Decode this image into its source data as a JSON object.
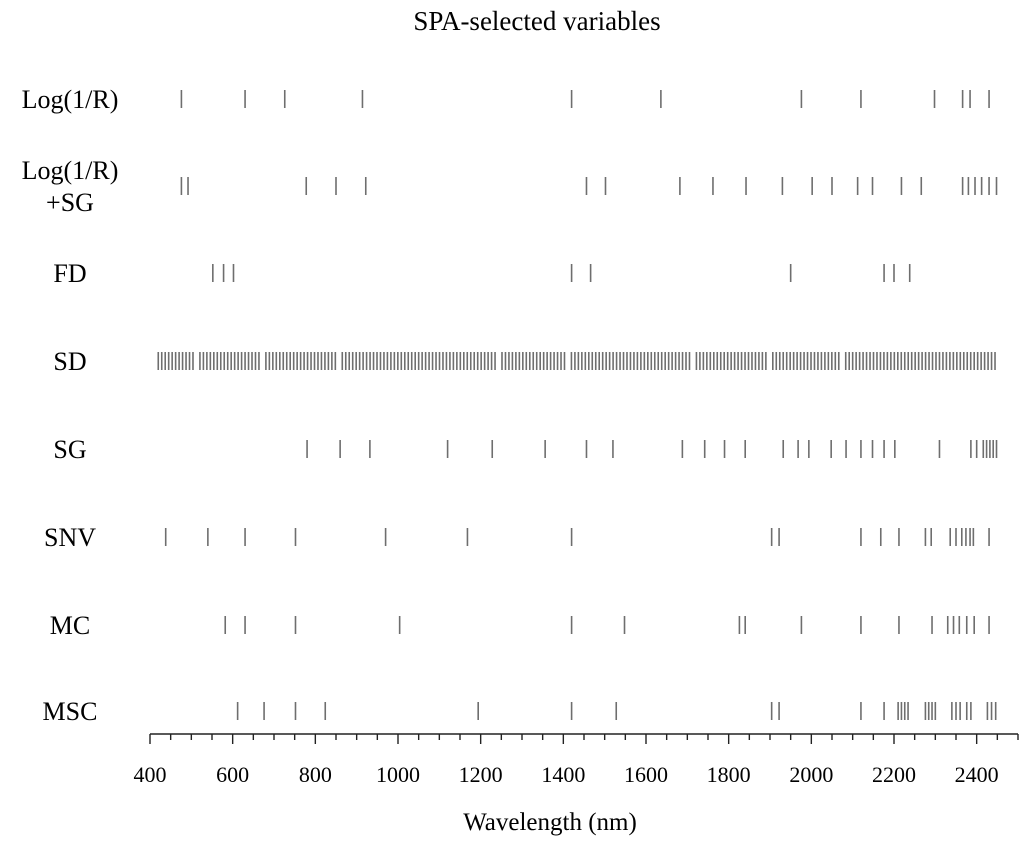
{
  "chart_data": {
    "type": "scatter",
    "title": "SPA-selected variables",
    "xlabel": "Wavelength (nm)",
    "ylabel": "",
    "xlim": [
      400,
      2500
    ],
    "xticks": [
      400,
      600,
      800,
      1000,
      1200,
      1400,
      1600,
      1800,
      2000,
      2200,
      2400
    ],
    "xtick_labels": [
      "400",
      "600",
      "800",
      "1000",
      "1200",
      "1400",
      "1600",
      "1800",
      "2000",
      "2200",
      "2400"
    ],
    "mark_color": "#6e6e6e",
    "series": [
      {
        "name": "Log(1/R)",
        "label_lines": [
          "Log(1/R)"
        ],
        "x": [
          476,
          630,
          726,
          914,
          1420,
          1636,
          1976,
          2120,
          2298,
          2366,
          2384,
          2430
        ]
      },
      {
        "name": "Log(1/R)+SG",
        "label_lines": [
          "Log(1/R)",
          "+SG"
        ],
        "x": [
          476,
          492,
          778,
          850,
          922,
          1456,
          1502,
          1682,
          1762,
          1842,
          1930,
          2002,
          2050,
          2112,
          2148,
          2218,
          2266,
          2366,
          2380,
          2396,
          2412,
          2430,
          2448
        ]
      },
      {
        "name": "FD",
        "label_lines": [
          "FD"
        ],
        "x": [
          552,
          578,
          602,
          1420,
          1466,
          1950,
          2176,
          2200,
          2238
        ]
      },
      {
        "name": "SD",
        "label_lines": [
          "SD"
        ],
        "dense": true,
        "range": [
          420,
          2450
        ],
        "step": 8.4,
        "gaps": [
          [
            508,
            516
          ],
          [
            668,
            676
          ],
          [
            852,
            860
          ],
          [
            1236,
            1244
          ],
          [
            1408,
            1416
          ],
          [
            1546,
            1552
          ],
          [
            1708,
            1716
          ],
          [
            1896,
            1904
          ],
          [
            2072,
            2080
          ]
        ],
        "x": []
      },
      {
        "name": "SG",
        "label_lines": [
          "SG"
        ],
        "x": [
          780,
          860,
          932,
          1120,
          1228,
          1356,
          1456,
          1520,
          1688,
          1742,
          1790,
          1840,
          1932,
          1968,
          1994,
          2048,
          2084,
          2120,
          2148,
          2176,
          2202,
          2310,
          2386,
          2400,
          2416,
          2424,
          2432,
          2440,
          2448
        ]
      },
      {
        "name": "SNV",
        "label_lines": [
          "SNV"
        ],
        "x": [
          438,
          540,
          630,
          752,
          970,
          1168,
          1420,
          1904,
          1922,
          2120,
          2168,
          2212,
          2276,
          2290,
          2336,
          2350,
          2364,
          2374,
          2384,
          2392,
          2430
        ]
      },
      {
        "name": "MC",
        "label_lines": [
          "MC"
        ],
        "x": [
          582,
          630,
          752,
          1004,
          1420,
          1548,
          1826,
          1840,
          1976,
          2120,
          2212,
          2292,
          2330,
          2344,
          2358,
          2376,
          2394,
          2430
        ]
      },
      {
        "name": "MSC",
        "label_lines": [
          "MSC"
        ],
        "x": [
          612,
          676,
          752,
          824,
          1194,
          1420,
          1528,
          1904,
          1922,
          2120,
          2176,
          2210,
          2218,
          2226,
          2234,
          2276,
          2284,
          2292,
          2300,
          2340,
          2350,
          2360,
          2376,
          2386,
          2426,
          2436,
          2446
        ]
      }
    ]
  }
}
